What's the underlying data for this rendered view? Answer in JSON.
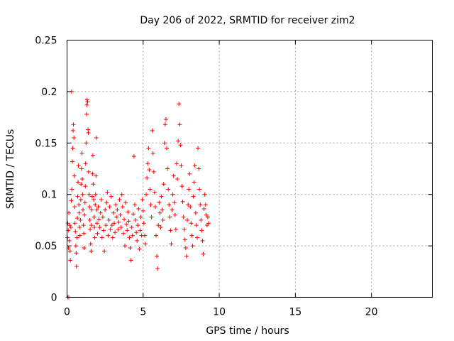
{
  "chart_data": {
    "type": "scatter",
    "title": "Day 206 of 2022, SRMTID for receiver zim2",
    "xlabel": "GPS time / hours",
    "ylabel": "SRMTID / TECUs",
    "xlim": [
      0,
      24
    ],
    "ylim": [
      0,
      0.25
    ],
    "xticks": [
      0,
      5,
      10,
      15,
      20
    ],
    "xtick_labels": [
      "0",
      "5",
      "10",
      "15",
      "20"
    ],
    "yticks": [
      0,
      0.05,
      0.1,
      0.15,
      0.2,
      0.25
    ],
    "ytick_labels": [
      "0",
      "0.05",
      "0.1",
      "0.15",
      "0.2",
      "0.25"
    ],
    "grid": true,
    "marker": "+",
    "color": "#ff0000",
    "series": [
      {
        "name": "zim2",
        "points": [
          [
            0.05,
            0.0
          ],
          [
            0.12,
            0.0
          ],
          [
            0.03,
            0.058
          ],
          [
            0.05,
            0.072
          ],
          [
            0.08,
            0.065
          ],
          [
            0.1,
            0.048
          ],
          [
            0.12,
            0.082
          ],
          [
            0.15,
            0.055
          ],
          [
            0.18,
            0.07
          ],
          [
            0.2,
            0.045
          ],
          [
            0.22,
            0.036
          ],
          [
            0.25,
            0.068
          ],
          [
            0.28,
            0.094
          ],
          [
            0.3,
            0.2
          ],
          [
            0.32,
            0.105
          ],
          [
            0.35,
            0.132
          ],
          [
            0.38,
            0.145
          ],
          [
            0.4,
            0.162
          ],
          [
            0.42,
            0.168
          ],
          [
            0.45,
            0.155
          ],
          [
            0.48,
            0.118
          ],
          [
            0.5,
            0.088
          ],
          [
            0.52,
            0.072
          ],
          [
            0.55,
            0.064
          ],
          [
            0.58,
            0.05
          ],
          [
            0.6,
            0.043
          ],
          [
            0.62,
            0.03
          ],
          [
            0.65,
            0.058
          ],
          [
            0.68,
            0.077
          ],
          [
            0.7,
            0.098
          ],
          [
            0.72,
            0.112
          ],
          [
            0.75,
            0.128
          ],
          [
            0.78,
            0.09
          ],
          [
            0.8,
            0.082
          ],
          [
            0.82,
            0.068
          ],
          [
            0.85,
            0.06
          ],
          [
            0.88,
            0.075
          ],
          [
            0.9,
            0.095
          ],
          [
            0.92,
            0.11
          ],
          [
            0.95,
            0.125
          ],
          [
            0.98,
            0.14
          ],
          [
            1.0,
            0.115
          ],
          [
            1.02,
            0.1
          ],
          [
            1.05,
            0.085
          ],
          [
            1.08,
            0.07
          ],
          [
            1.1,
            0.062
          ],
          [
            1.12,
            0.048
          ],
          [
            1.15,
            0.08
          ],
          [
            1.18,
            0.092
          ],
          [
            1.2,
            0.108
          ],
          [
            1.22,
            0.13
          ],
          [
            1.25,
            0.15
          ],
          [
            1.28,
            0.178
          ],
          [
            1.3,
            0.187
          ],
          [
            1.32,
            0.192
          ],
          [
            1.35,
            0.19
          ],
          [
            1.38,
            0.163
          ],
          [
            1.4,
            0.16
          ],
          [
            1.42,
            0.122
          ],
          [
            1.45,
            0.1
          ],
          [
            1.48,
            0.088
          ],
          [
            1.5,
            0.075
          ],
          [
            1.52,
            0.066
          ],
          [
            1.55,
            0.052
          ],
          [
            1.58,
            0.045
          ],
          [
            1.6,
            0.07
          ],
          [
            1.62,
            0.085
          ],
          [
            1.65,
            0.098
          ],
          [
            1.68,
            0.12
          ],
          [
            1.7,
            0.138
          ],
          [
            1.72,
            0.11
          ],
          [
            1.75,
            0.095
          ],
          [
            1.78,
            0.078
          ],
          [
            1.8,
            0.068
          ],
          [
            1.82,
            0.058
          ],
          [
            1.85,
            0.09
          ],
          [
            1.88,
            0.1
          ],
          [
            1.9,
            0.118
          ],
          [
            1.92,
            0.155
          ],
          [
            1.95,
            0.085
          ],
          [
            1.98,
            0.072
          ],
          [
            2.0,
            0.062
          ],
          [
            2.05,
            0.088
          ],
          [
            2.1,
            0.076
          ],
          [
            2.15,
            0.068
          ],
          [
            2.2,
            0.082
          ],
          [
            2.25,
            0.095
          ],
          [
            2.3,
            0.058
          ],
          [
            2.35,
            0.078
          ],
          [
            2.4,
            0.065
          ],
          [
            2.45,
            0.045
          ],
          [
            2.5,
            0.085
          ],
          [
            2.55,
            0.07
          ],
          [
            2.6,
            0.092
          ],
          [
            2.65,
            0.102
          ],
          [
            2.7,
            0.06
          ],
          [
            2.75,
            0.075
          ],
          [
            2.8,
            0.088
          ],
          [
            2.85,
            0.066
          ],
          [
            2.9,
            0.098
          ],
          [
            2.95,
            0.07
          ],
          [
            3.0,
            0.058
          ],
          [
            3.05,
            0.082
          ],
          [
            3.1,
            0.072
          ],
          [
            3.15,
            0.063
          ],
          [
            3.2,
            0.09
          ],
          [
            3.25,
            0.078
          ],
          [
            3.3,
            0.085
          ],
          [
            3.35,
            0.066
          ],
          [
            3.4,
            0.073
          ],
          [
            3.45,
            0.095
          ],
          [
            3.5,
            0.08
          ],
          [
            3.55,
            0.068
          ],
          [
            3.6,
            0.1
          ],
          [
            3.65,
            0.088
          ],
          [
            3.7,
            0.062
          ],
          [
            3.75,
            0.076
          ],
          [
            3.8,
            0.05
          ],
          [
            3.85,
            0.092
          ],
          [
            3.9,
            0.071
          ],
          [
            3.95,
            0.065
          ],
          [
            4.0,
            0.083
          ],
          [
            4.05,
            0.074
          ],
          [
            4.1,
            0.058
          ],
          [
            4.15,
            0.048
          ],
          [
            4.2,
            0.036
          ],
          [
            4.25,
            0.068
          ],
          [
            4.3,
            0.06
          ],
          [
            4.35,
            0.081
          ],
          [
            4.4,
            0.137
          ],
          [
            4.45,
            0.09
          ],
          [
            4.5,
            0.075
          ],
          [
            4.55,
            0.063
          ],
          [
            4.6,
            0.055
          ],
          [
            4.65,
            0.07
          ],
          [
            4.7,
            0.086
          ],
          [
            4.75,
            0.047
          ],
          [
            4.8,
            0.065
          ],
          [
            4.85,
            0.078
          ],
          [
            4.9,
            0.06
          ],
          [
            4.95,
            0.095
          ],
          [
            5.0,
            0.084
          ],
          [
            5.05,
            0.072
          ],
          [
            5.1,
            0.06
          ],
          [
            5.15,
            0.052
          ],
          [
            5.2,
            0.1
          ],
          [
            5.25,
            0.116
          ],
          [
            5.3,
            0.13
          ],
          [
            5.35,
            0.145
          ],
          [
            5.4,
            0.124
          ],
          [
            5.45,
            0.105
          ],
          [
            5.5,
            0.09
          ],
          [
            5.55,
            0.078
          ],
          [
            5.6,
            0.162
          ],
          [
            5.65,
            0.14
          ],
          [
            5.7,
            0.122
          ],
          [
            5.75,
            0.102
          ],
          [
            5.8,
            0.088
          ],
          [
            5.85,
            0.06
          ],
          [
            5.9,
            0.04
          ],
          [
            5.95,
            0.028
          ],
          [
            6.0,
            0.07
          ],
          [
            6.05,
            0.092
          ],
          [
            6.1,
            0.082
          ],
          [
            6.15,
            0.068
          ],
          [
            6.2,
            0.098
          ],
          [
            6.25,
            0.085
          ],
          [
            6.3,
            0.075
          ],
          [
            6.35,
            0.11
          ],
          [
            6.4,
            0.15
          ],
          [
            6.45,
            0.168
          ],
          [
            6.5,
            0.173
          ],
          [
            6.55,
            0.145
          ],
          [
            6.6,
            0.125
          ],
          [
            6.65,
            0.105
          ],
          [
            6.7,
            0.09
          ],
          [
            6.75,
            0.078
          ],
          [
            6.8,
            0.065
          ],
          [
            6.85,
            0.052
          ],
          [
            6.9,
            0.085
          ],
          [
            6.95,
            0.1
          ],
          [
            7.0,
            0.118
          ],
          [
            7.05,
            0.092
          ],
          [
            7.1,
            0.08
          ],
          [
            7.15,
            0.066
          ],
          [
            7.2,
            0.13
          ],
          [
            7.25,
            0.115
          ],
          [
            7.3,
            0.152
          ],
          [
            7.35,
            0.188
          ],
          [
            7.4,
            0.168
          ],
          [
            7.45,
            0.148
          ],
          [
            7.5,
            0.128
          ],
          [
            7.55,
            0.108
          ],
          [
            7.6,
            0.093
          ],
          [
            7.65,
            0.078
          ],
          [
            7.7,
            0.066
          ],
          [
            7.75,
            0.056
          ],
          [
            7.8,
            0.048
          ],
          [
            7.85,
            0.04
          ],
          [
            7.9,
            0.075
          ],
          [
            7.95,
            0.09
          ],
          [
            8.0,
            0.105
          ],
          [
            8.05,
            0.12
          ],
          [
            8.1,
            0.088
          ],
          [
            8.15,
            0.072
          ],
          [
            8.2,
            0.06
          ],
          [
            8.25,
            0.05
          ],
          [
            8.3,
            0.098
          ],
          [
            8.35,
            0.112
          ],
          [
            8.4,
            0.128
          ],
          [
            8.45,
            0.082
          ],
          [
            8.5,
            0.07
          ],
          [
            8.55,
            0.058
          ],
          [
            8.6,
            0.145
          ],
          [
            8.65,
            0.125
          ],
          [
            8.7,
            0.105
          ],
          [
            8.75,
            0.09
          ],
          [
            8.8,
            0.075
          ],
          [
            8.85,
            0.065
          ],
          [
            8.9,
            0.055
          ],
          [
            8.95,
            0.042
          ],
          [
            9.0,
            0.086
          ],
          [
            9.05,
            0.1
          ],
          [
            9.1,
            0.09
          ],
          [
            9.15,
            0.08
          ],
          [
            9.2,
            0.07
          ],
          [
            9.25,
            0.078
          ],
          [
            9.3,
            0.072
          ]
        ]
      }
    ]
  }
}
